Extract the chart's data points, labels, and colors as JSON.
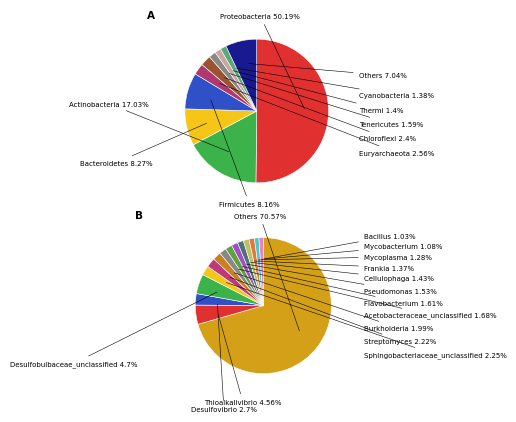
{
  "chart_A": {
    "values": [
      50.19,
      17.03,
      8.27,
      8.16,
      2.56,
      2.4,
      1.59,
      1.4,
      1.38,
      7.04
    ],
    "labels": [
      "Proteobacteria 50.19%",
      "Actinobacteria 17.03%",
      "Bacteroidetes 8.27%",
      "Firmicutes 8.16%",
      "Euryarchaeota 2.56%",
      "Chloroflexi 2.4%",
      "Tenericutes 1.59%",
      "Thermi 1.4%",
      "Cyanobacteria 1.38%",
      "Others 7.04%"
    ],
    "colors": [
      "#e03030",
      "#3cb34a",
      "#f5c518",
      "#3050c8",
      "#b03870",
      "#9a5530",
      "#888888",
      "#c8a8a0",
      "#5aaa78",
      "#1a1a90"
    ]
  },
  "chart_B": {
    "values": [
      70.57,
      4.56,
      2.7,
      4.7,
      2.25,
      2.22,
      1.99,
      1.68,
      1.61,
      1.53,
      1.43,
      1.37,
      1.28,
      1.08,
      1.03
    ],
    "labels": [
      "Others 70.57%",
      "Thioalkalivibrio 4.56%",
      "Desulfovibrio 2.7%",
      "Desulfobulbaceae_unclassified 4.7%",
      "Sphingobacteriaceae_unclassified 2.25%",
      "Streptomyces 2.22%",
      "Burkholderia 1.99%",
      "Acetobacteraceae_unclassified 1.68%",
      "Flavobacterium 1.61%",
      "Pseudomonas 1.53%",
      "Cellulophaga 1.43%",
      "Frankia 1.37%",
      "Mycoplasma 1.28%",
      "Mycobacterium 1.08%",
      "Bacillus 1.03%"
    ],
    "colors": [
      "#d4a017",
      "#e03030",
      "#3050c8",
      "#3cb34a",
      "#f5c518",
      "#c03878",
      "#c88020",
      "#888888",
      "#60a040",
      "#a050c0",
      "#507080",
      "#c0c060",
      "#e07840",
      "#50c8c8",
      "#f080c0"
    ]
  },
  "bg": "#ffffff",
  "fs": 5.0,
  "fs_label": 7.5
}
